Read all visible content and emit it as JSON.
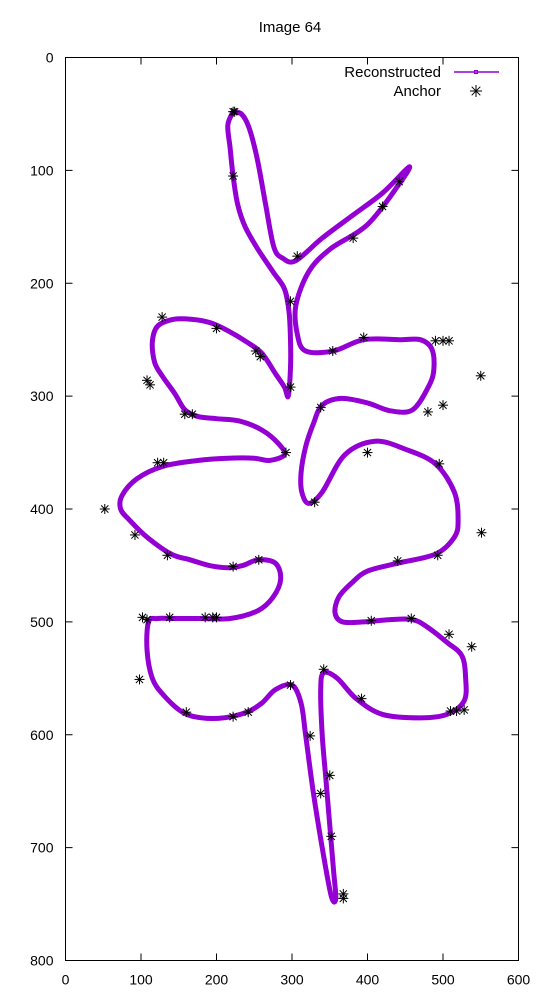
{
  "chart_data": {
    "type": "line",
    "title": "Image 64",
    "xlabel": "",
    "ylabel": "",
    "xlim": [
      0,
      600
    ],
    "ylim": [
      800,
      0
    ],
    "y_inverted": true,
    "xticks": [
      0,
      100,
      200,
      300,
      400,
      500,
      600
    ],
    "yticks": [
      0,
      100,
      200,
      300,
      400,
      500,
      600,
      700,
      800
    ],
    "grid": false,
    "legend_position": "top-right",
    "series": [
      {
        "name": "Reconstructed",
        "style": "line",
        "color": "#9400d3",
        "points": [
          [
            222,
            48
          ],
          [
            233,
            50
          ],
          [
            243,
            62
          ],
          [
            254,
            90
          ],
          [
            265,
            130
          ],
          [
            276,
            168
          ],
          [
            288,
            178
          ],
          [
            305,
            180
          ],
          [
            340,
            160
          ],
          [
            380,
            140
          ],
          [
            420,
            120
          ],
          [
            455,
            97
          ],
          [
            442,
            112
          ],
          [
            400,
            148
          ],
          [
            350,
            170
          ],
          [
            322,
            190
          ],
          [
            305,
            220
          ],
          [
            307,
            245
          ],
          [
            318,
            260
          ],
          [
            355,
            260
          ],
          [
            395,
            250
          ],
          [
            445,
            250
          ],
          [
            470,
            250
          ],
          [
            485,
            258
          ],
          [
            488,
            275
          ],
          [
            482,
            290
          ],
          [
            460,
            312
          ],
          [
            430,
            313
          ],
          [
            400,
            306
          ],
          [
            365,
            302
          ],
          [
            340,
            308
          ],
          [
            328,
            325
          ],
          [
            318,
            345
          ],
          [
            312,
            368
          ],
          [
            313,
            385
          ],
          [
            322,
            395
          ],
          [
            340,
            385
          ],
          [
            370,
            352
          ],
          [
            410,
            340
          ],
          [
            450,
            347
          ],
          [
            490,
            360
          ],
          [
            515,
            385
          ],
          [
            520,
            410
          ],
          [
            515,
            425
          ],
          [
            490,
            440
          ],
          [
            440,
            448
          ],
          [
            400,
            455
          ],
          [
            380,
            465
          ],
          [
            362,
            478
          ],
          [
            357,
            492
          ],
          [
            367,
            500
          ],
          [
            395,
            500
          ],
          [
            430,
            498
          ],
          [
            460,
            498
          ],
          [
            480,
            505
          ],
          [
            505,
            518
          ],
          [
            525,
            530
          ],
          [
            530,
            550
          ],
          [
            528,
            570
          ],
          [
            505,
            582
          ],
          [
            470,
            585
          ],
          [
            420,
            582
          ],
          [
            385,
            568
          ],
          [
            360,
            550
          ],
          [
            342,
            545
          ],
          [
            338,
            560
          ],
          [
            340,
            600
          ],
          [
            345,
            640
          ],
          [
            350,
            680
          ],
          [
            355,
            720
          ],
          [
            358,
            745
          ],
          [
            352,
            743
          ],
          [
            340,
            700
          ],
          [
            328,
            650
          ],
          [
            318,
            600
          ],
          [
            312,
            572
          ],
          [
            300,
            556
          ],
          [
            278,
            560
          ],
          [
            260,
            572
          ],
          [
            240,
            580
          ],
          [
            210,
            585
          ],
          [
            180,
            585
          ],
          [
            155,
            580
          ],
          [
            130,
            565
          ],
          [
            115,
            550
          ],
          [
            108,
            525
          ],
          [
            110,
            500
          ],
          [
            122,
            497
          ],
          [
            145,
            497
          ],
          [
            180,
            497
          ],
          [
            218,
            497
          ],
          [
            255,
            490
          ],
          [
            275,
            478
          ],
          [
            285,
            462
          ],
          [
            278,
            448
          ],
          [
            255,
            445
          ],
          [
            235,
            450
          ],
          [
            215,
            452
          ],
          [
            190,
            450
          ],
          [
            165,
            445
          ],
          [
            140,
            440
          ],
          [
            108,
            425
          ],
          [
            85,
            410
          ],
          [
            73,
            400
          ],
          [
            75,
            388
          ],
          [
            95,
            373
          ],
          [
            130,
            362
          ],
          [
            175,
            357
          ],
          [
            215,
            355
          ],
          [
            250,
            355
          ],
          [
            270,
            357
          ],
          [
            290,
            352
          ],
          [
            282,
            342
          ],
          [
            260,
            330
          ],
          [
            230,
            322
          ],
          [
            200,
            320
          ],
          [
            175,
            318
          ],
          [
            158,
            312
          ],
          [
            145,
            298
          ],
          [
            128,
            282
          ],
          [
            118,
            270
          ],
          [
            115,
            252
          ],
          [
            122,
            238
          ],
          [
            143,
            232
          ],
          [
            168,
            232
          ],
          [
            192,
            235
          ],
          [
            215,
            242
          ],
          [
            240,
            252
          ],
          [
            260,
            262
          ],
          [
            278,
            280
          ],
          [
            290,
            292
          ],
          [
            295,
            300
          ],
          [
            298,
            275
          ],
          [
            298,
            250
          ],
          [
            296,
            225
          ],
          [
            290,
            205
          ],
          [
            275,
            190
          ],
          [
            255,
            170
          ],
          [
            238,
            150
          ],
          [
            228,
            130
          ],
          [
            222,
            105
          ],
          [
            218,
            80
          ],
          [
            215,
            60
          ],
          [
            222,
            48
          ]
        ]
      },
      {
        "name": "Anchor",
        "style": "points",
        "color": "#000000",
        "points": [
          [
            222,
            48
          ],
          [
            224,
            48
          ],
          [
            222,
            105
          ],
          [
            307,
            176
          ],
          [
            381,
            160
          ],
          [
            420,
            132
          ],
          [
            442,
            110
          ],
          [
            298,
            216
          ],
          [
            354,
            260
          ],
          [
            395,
            248
          ],
          [
            490,
            251
          ],
          [
            500,
            251
          ],
          [
            508,
            251
          ],
          [
            550,
            282
          ],
          [
            298,
            292
          ],
          [
            252,
            260
          ],
          [
            258,
            265
          ],
          [
            200,
            240
          ],
          [
            128,
            230
          ],
          [
            108,
            286
          ],
          [
            112,
            290
          ],
          [
            158,
            316
          ],
          [
            168,
            316
          ],
          [
            338,
            310
          ],
          [
            480,
            314
          ],
          [
            500,
            308
          ],
          [
            292,
            350
          ],
          [
            400,
            350
          ],
          [
            495,
            360
          ],
          [
            122,
            359
          ],
          [
            130,
            359
          ],
          [
            330,
            394
          ],
          [
            52,
            400
          ],
          [
            92,
            423
          ],
          [
            135,
            441
          ],
          [
            222,
            451
          ],
          [
            256,
            445
          ],
          [
            440,
            446
          ],
          [
            493,
            441
          ],
          [
            551,
            421
          ],
          [
            102,
            496
          ],
          [
            108,
            498
          ],
          [
            138,
            496
          ],
          [
            185,
            496
          ],
          [
            195,
            496
          ],
          [
            200,
            496
          ],
          [
            405,
            499
          ],
          [
            458,
            497
          ],
          [
            508,
            511
          ],
          [
            538,
            522
          ],
          [
            98,
            551
          ],
          [
            160,
            580
          ],
          [
            222,
            584
          ],
          [
            242,
            580
          ],
          [
            298,
            556
          ],
          [
            342,
            542
          ],
          [
            392,
            568
          ],
          [
            510,
            579
          ],
          [
            518,
            579
          ],
          [
            528,
            578
          ],
          [
            324,
            601
          ],
          [
            350,
            636
          ],
          [
            338,
            652
          ],
          [
            352,
            690
          ],
          [
            368,
            741
          ],
          [
            368,
            745
          ]
        ]
      }
    ]
  }
}
